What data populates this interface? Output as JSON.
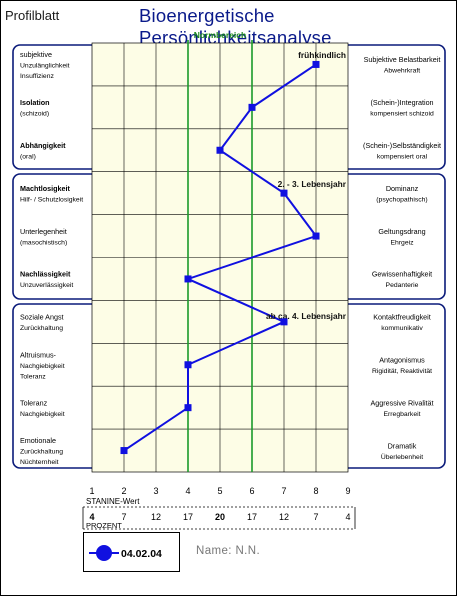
{
  "page": {
    "left_title": "Profilblatt",
    "main_title": "Bioenergetische Persönlichkeitsanalyse",
    "name_label": "Name:  N.N."
  },
  "colors": {
    "frame": "#0a1a7a",
    "cell_bg": "#fdfde6",
    "grid": "#000000",
    "norm_lines": "#1a9a2a",
    "norm_label": "#1a8a1a",
    "series": "#1010e0",
    "title": "#0a1a8a"
  },
  "chart_data": {
    "type": "line",
    "title": "",
    "norm_label": "Normbereich",
    "norm_range": [
      4,
      6
    ],
    "xlabel": "STANINE-Wert",
    "x_ticks": [
      1,
      2,
      3,
      4,
      5,
      6,
      7,
      8,
      9
    ],
    "xlim": [
      1,
      9
    ],
    "percent_label": "PROZENT",
    "percent_values": [
      "4",
      "7",
      "12",
      "17",
      "20",
      "17",
      "12",
      "7",
      "4"
    ],
    "groups": [
      {
        "label": "frühkindlich",
        "rows": [
          {
            "left": [
              "subjektive",
              "Unzulänglichkeit",
              "Insuffizienz"
            ],
            "right": [
              "Subjektive Belastbarkeit",
              "Abwehrkraft"
            ],
            "value": 8
          },
          {
            "left": [
              "Isolation",
              "(schizoid)"
            ],
            "right": [
              "(Schein-)Integration",
              "kompensiert schizoid"
            ],
            "value": 6
          },
          {
            "left": [
              "Abhängigkeit",
              "(oral)"
            ],
            "right": [
              "(Schein-)Selbständigkeit",
              "kompensiert oral"
            ],
            "value": 5
          }
        ]
      },
      {
        "label": "2. - 3. Lebensjahr",
        "rows": [
          {
            "left": [
              "Machtlosigkeit",
              "Hilf- / Schutzlosigkeit"
            ],
            "right": [
              "Dominanz",
              "(psychopathisch)"
            ],
            "value": 7
          },
          {
            "left": [
              "Unterlegenheit",
              "(masochistisch)"
            ],
            "right": [
              "Geltungsdrang",
              "Ehrgeiz"
            ],
            "value": 8
          },
          {
            "left": [
              "Nachlässigkeit",
              "Unzuverlässigkeit"
            ],
            "right": [
              "Gewissenhaftigkeit",
              "Pedanterie"
            ],
            "value": 4
          }
        ]
      },
      {
        "label": "ab ca. 4. Lebensjahr",
        "rows": [
          {
            "left": [
              "Soziale Angst",
              "Zurückhaltung"
            ],
            "right": [
              "Kontaktfreudigkeit",
              "kommunikativ"
            ],
            "value": 7
          },
          {
            "left": [
              "Altruismus-",
              "Nachgiebigkeit",
              "Toleranz"
            ],
            "right": [
              "Antagonismus",
              "Rigidität, Reaktivität"
            ],
            "value": 4
          },
          {
            "left": [
              "Toleranz",
              "Nachgiebigkeit"
            ],
            "right": [
              "Aggressive Rivalität",
              "Erregbarkeit"
            ],
            "value": 4
          },
          {
            "left": [
              "Emotionale",
              "Zurückhaltung",
              "Nüchternheit"
            ],
            "right": [
              "Dramatik",
              "Überlebenheit"
            ],
            "value": 2
          }
        ]
      }
    ],
    "series": [
      {
        "name": "04.02.04"
      }
    ]
  }
}
